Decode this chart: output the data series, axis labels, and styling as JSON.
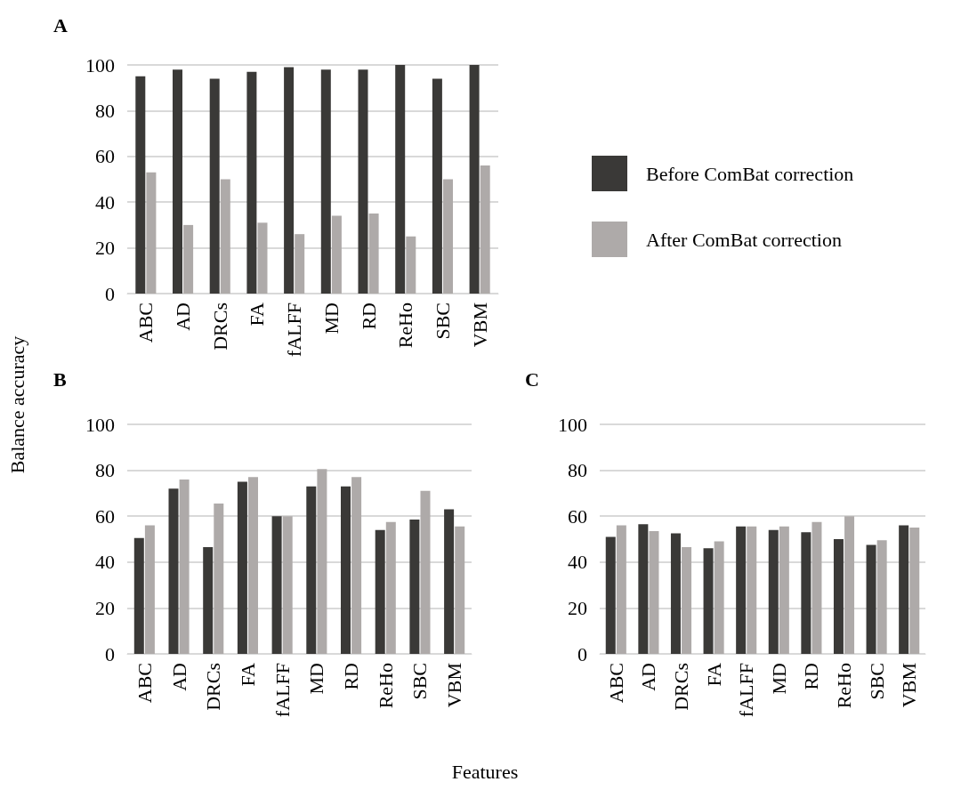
{
  "chart_data": [
    {
      "type": "bar",
      "title": "A",
      "categories": [
        "ABC",
        "AD",
        "DRCs",
        "FA",
        "fALFF",
        "MD",
        "RD",
        "ReHo",
        "SBC",
        "VBM"
      ],
      "series": [
        {
          "name": "Before ComBat correction",
          "color": "#3a3937",
          "values": [
            95,
            98,
            94,
            97,
            99,
            98,
            98,
            100,
            94,
            100
          ]
        },
        {
          "name": "After ComBat correction",
          "color": "#aeaaa9",
          "values": [
            53,
            30,
            50,
            31,
            26,
            34,
            35,
            25,
            50,
            56
          ]
        }
      ],
      "ylim": [
        0,
        100
      ],
      "yticks": [
        0,
        20,
        40,
        60,
        80,
        100
      ],
      "grid": "y",
      "legend": "right"
    },
    {
      "type": "bar",
      "title": "B",
      "ylabel": "Balance accuracy",
      "categories": [
        "ABC",
        "AD",
        "DRCs",
        "FA",
        "fALFF",
        "MD",
        "RD",
        "ReHo",
        "SBC",
        "VBM"
      ],
      "series": [
        {
          "color": "#3a3937",
          "values": [
            50.5,
            72,
            46.5,
            75,
            60,
            73,
            73,
            54,
            58.5,
            63
          ]
        },
        {
          "color": "#aeaaa9",
          "values": [
            56,
            76,
            65.5,
            77,
            60,
            80.5,
            77,
            57.5,
            71,
            55.5
          ]
        }
      ],
      "ylim": [
        0,
        100
      ],
      "yticks": [
        0,
        20,
        40,
        60,
        80,
        100
      ],
      "grid": "y"
    },
    {
      "type": "bar",
      "title": "C",
      "xlabel": "Features",
      "categories": [
        "ABC",
        "AD",
        "DRCs",
        "FA",
        "fALFF",
        "MD",
        "RD",
        "ReHo",
        "SBC",
        "VBM"
      ],
      "series": [
        {
          "color": "#3a3937",
          "values": [
            51,
            56.5,
            52.5,
            46,
            55.5,
            54,
            53,
            50,
            47.5,
            56
          ]
        },
        {
          "color": "#aeaaa9",
          "values": [
            56,
            53.5,
            46.5,
            49,
            55.5,
            55.5,
            57.5,
            60,
            49.5,
            55
          ]
        }
      ],
      "ylim": [
        0,
        100
      ],
      "yticks": [
        0,
        20,
        40,
        60,
        80,
        100
      ],
      "grid": "y"
    }
  ]
}
